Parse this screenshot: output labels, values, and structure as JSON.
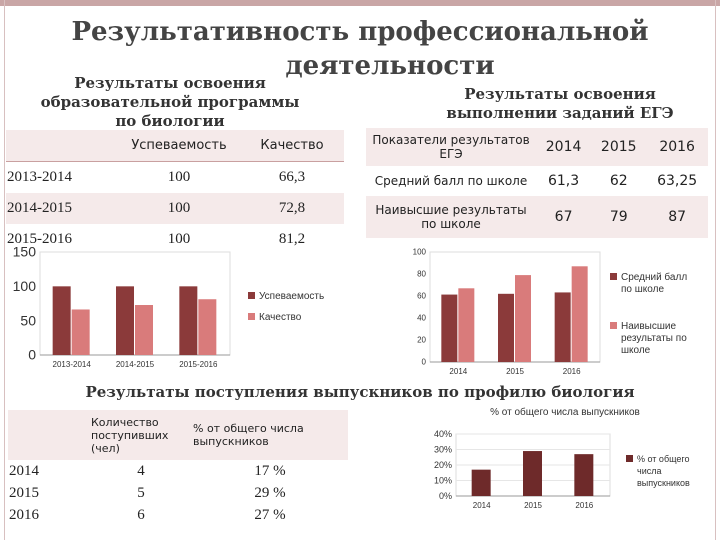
{
  "title_line1": "Результативность профессиональной",
  "title_line2": "деятельности",
  "left_sub": "Результаты освоения образовательной программы по биологии",
  "right_sub": "Результаты освоения выполнении заданий ЕГЭ",
  "table1": {
    "headers": [
      "Успеваемость",
      "Качество"
    ],
    "rows": [
      {
        "year": "2013-2014",
        "usp": "100",
        "kach": "66,3"
      },
      {
        "year": "2014-2015",
        "usp": "100",
        "kach": "72,8"
      },
      {
        "year": "2015-2016",
        "usp": "100",
        "kach": "81,2"
      }
    ]
  },
  "table2": {
    "header_label": "Показатели результатов ЕГЭ",
    "years": [
      "2014",
      "2015",
      "2016"
    ],
    "rows": [
      {
        "label": "Средний балл по школе",
        "values": [
          "61,3",
          "62",
          "63,25"
        ]
      },
      {
        "label": "Наивысшие результаты по школе",
        "values": [
          "67",
          "79",
          "87"
        ]
      }
    ]
  },
  "bottom_title": "Результаты поступления выпускников по профилю биология",
  "table3": {
    "col1": "Количество поступивших (чел)",
    "col2": "% от общего числа выпускников",
    "rows": [
      {
        "year": "2014",
        "count": "4",
        "pct": "17 %"
      },
      {
        "year": "2015",
        "count": "5",
        "pct": "29 %"
      },
      {
        "year": "2016",
        "count": "6",
        "pct": "27 %"
      }
    ]
  },
  "colors": {
    "dark": "#8b3a3a",
    "light": "#d97b7b",
    "bar3": "#6e2a2a"
  },
  "chart_data": [
    {
      "type": "bar",
      "categories": [
        "2013-2014",
        "2014-2015",
        "2015-2016"
      ],
      "series": [
        {
          "name": "Успеваемость",
          "values": [
            100,
            100,
            100
          ]
        },
        {
          "name": "Качество",
          "values": [
            66.3,
            72.8,
            81.2
          ]
        }
      ],
      "ylim": [
        0,
        150
      ],
      "yticks": [
        "0",
        "50",
        "100",
        "150"
      ],
      "legend": "right"
    },
    {
      "type": "bar",
      "categories": [
        "2014",
        "2015",
        "2016"
      ],
      "series": [
        {
          "name": "Средний балл по школе",
          "values": [
            61.3,
            62,
            63.25
          ]
        },
        {
          "name": "Наивысшие результаты по школе",
          "values": [
            67,
            79,
            87
          ]
        }
      ],
      "ylim": [
        0,
        100
      ],
      "yticks": [
        "0",
        "20",
        "40",
        "60",
        "80",
        "100"
      ],
      "legend": "right"
    },
    {
      "type": "bar",
      "title": "% от общего числа выпускников",
      "categories": [
        "2014",
        "2015",
        "2016"
      ],
      "series": [
        {
          "name": "% от общего числа выпускников",
          "values": [
            17,
            29,
            27
          ]
        }
      ],
      "ylim": [
        0,
        40
      ],
      "yticks": [
        "0%",
        "10%",
        "20%",
        "30%",
        "40%"
      ],
      "legend": "right"
    }
  ]
}
